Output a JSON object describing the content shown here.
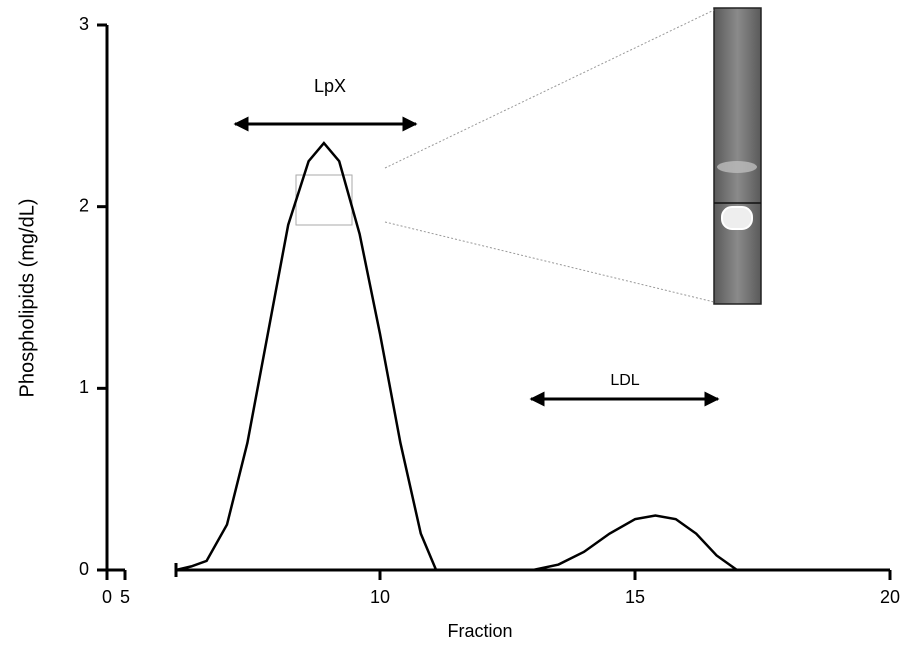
{
  "chart_data": {
    "type": "line",
    "ylabel": "Phospholipids (mg/dL)",
    "xlabel": "Fraction",
    "annotations": [
      "LpX",
      "LDL"
    ],
    "x": [
      6,
      6.3,
      6.6,
      7.0,
      7.4,
      7.8,
      8.2,
      8.6,
      8.9,
      9.2,
      9.6,
      10.0,
      10.4,
      10.8,
      11.1,
      12,
      13,
      13.5,
      14,
      14.5,
      15,
      15.4,
      15.8,
      16.2,
      16.6,
      17,
      18,
      19
    ],
    "values": [
      0,
      0.02,
      0.05,
      0.25,
      0.7,
      1.3,
      1.9,
      2.25,
      2.35,
      2.25,
      1.85,
      1.3,
      0.7,
      0.2,
      0,
      0,
      0,
      0.03,
      0.1,
      0.2,
      0.28,
      0.3,
      0.28,
      0.2,
      0.08,
      0,
      0,
      0
    ],
    "color": "#000000",
    "xlim": [
      0,
      20
    ],
    "xticks": [
      0,
      5,
      10,
      15,
      20
    ],
    "x_break": [
      5,
      6
    ],
    "ylim": [
      0,
      3
    ],
    "yticks": [
      0,
      1,
      2,
      3
    ]
  }
}
